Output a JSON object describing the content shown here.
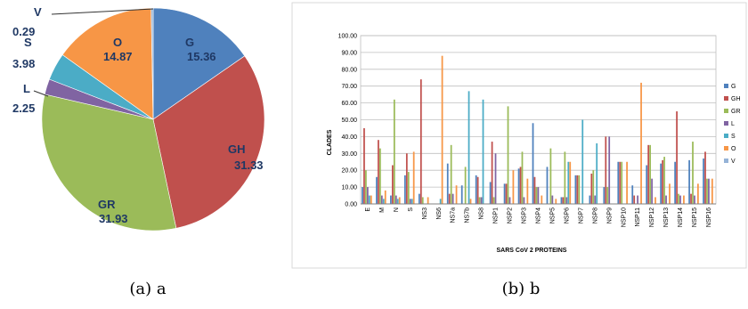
{
  "chart_data": [
    {
      "type": "pie",
      "slices": [
        {
          "label": "G",
          "value": 15.36,
          "color": "#4F81BD"
        },
        {
          "label": "GH",
          "value": 31.33,
          "color": "#C0504D"
        },
        {
          "label": "GR",
          "value": 31.93,
          "color": "#9BBB59"
        },
        {
          "label": "L",
          "value": 2.25,
          "color": "#8064A2"
        },
        {
          "label": "S",
          "value": 3.98,
          "color": "#4BACC6"
        },
        {
          "label": "O",
          "value": 14.87,
          "color": "#F79646"
        },
        {
          "label": "V",
          "value": 0.29,
          "color": "#95B3D7"
        }
      ],
      "caption": "(a) a"
    },
    {
      "type": "bar",
      "xlabel": "SARS CoV 2 PROTEINS",
      "ylabel": "CLADES",
      "ylim": [
        0,
        100
      ],
      "yticks": [
        "0.00",
        "10.00",
        "20.00",
        "30.00",
        "40.00",
        "50.00",
        "60.00",
        "70.00",
        "80.00",
        "90.00",
        "100.00"
      ],
      "grid": true,
      "legend": "right",
      "categories": [
        "E",
        "M",
        "N",
        "S",
        "NS3",
        "NS6",
        "NS7a",
        "NS7b",
        "NS8",
        "NSP1",
        "NSP2",
        "NSP3",
        "NSP4",
        "NSP5",
        "NSP6",
        "NSP7",
        "NSP8",
        "NSP9",
        "NSP10",
        "NSP11",
        "NSP12",
        "NSP13",
        "NSP14",
        "NSP15",
        "NSP16"
      ],
      "series": [
        {
          "name": "G",
          "color": "#4F81BD",
          "values": [
            10,
            16,
            5,
            17,
            6,
            0,
            24,
            11,
            17,
            13,
            12,
            21,
            48,
            22,
            4,
            17,
            5,
            10,
            25,
            11,
            23,
            24,
            25,
            26,
            27
          ]
        },
        {
          "name": "GH",
          "color": "#C0504D",
          "values": [
            45,
            38,
            23,
            30,
            74,
            0,
            6,
            0,
            16,
            37,
            12,
            22,
            16,
            0,
            4,
            17,
            18,
            40,
            25,
            5,
            35,
            26,
            55,
            6,
            31
          ]
        },
        {
          "name": "GR",
          "color": "#9BBB59",
          "values": [
            20,
            33,
            62,
            19,
            4,
            0,
            35,
            22,
            4,
            4,
            58,
            31,
            10,
            33,
            31,
            17,
            20,
            10,
            25,
            0,
            35,
            28,
            6,
            37,
            15
          ]
        },
        {
          "name": "L",
          "color": "#8064A2",
          "values": [
            10,
            5,
            5,
            3,
            0,
            0,
            6,
            0,
            4,
            30,
            4,
            4,
            10,
            5,
            4,
            0,
            5,
            40,
            0,
            5,
            15,
            5,
            5,
            5,
            15
          ]
        },
        {
          "name": "S",
          "color": "#4BACC6",
          "values": [
            5,
            3,
            3,
            3,
            0,
            3,
            0,
            67,
            62,
            0,
            0,
            0,
            0,
            0,
            25,
            50,
            36,
            0,
            0,
            0,
            0,
            0,
            0,
            0,
            0
          ]
        },
        {
          "name": "O",
          "color": "#F79646",
          "values": [
            5,
            8,
            4,
            31,
            4,
            88,
            11,
            3,
            0,
            0,
            20,
            15,
            5,
            3,
            25,
            0,
            0,
            0,
            25,
            72,
            4,
            12,
            5,
            12,
            15
          ]
        },
        {
          "name": "V",
          "color": "#95B3D7",
          "values": [
            0,
            0,
            0,
            0,
            0,
            0,
            0,
            0,
            0,
            0,
            0,
            0,
            0,
            0,
            0,
            0,
            0,
            0,
            0,
            0,
            0,
            0,
            0,
            0,
            0
          ]
        }
      ],
      "caption": "(b) b"
    }
  ]
}
